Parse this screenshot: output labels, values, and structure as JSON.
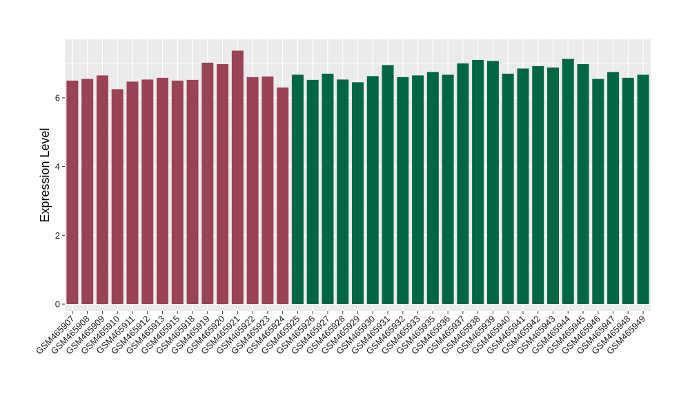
{
  "chart_data": {
    "type": "bar",
    "title": "",
    "xlabel": "",
    "ylabel": "Expression Level",
    "ylim": [
      -0.2,
      7.7
    ],
    "yticks": [
      0,
      2,
      4,
      6
    ],
    "grid": true,
    "legend": "none",
    "background_color": "#ebebeb",
    "grid_color": "#ffffff",
    "categories": [
      "GSM465907",
      "GSM465908",
      "GSM465909",
      "GSM465910",
      "GSM465911",
      "GSM465912",
      "GSM465913",
      "GSM465915",
      "GSM465918",
      "GSM465919",
      "GSM465920",
      "GSM465921",
      "GSM465922",
      "GSM465923",
      "GSM465924",
      "GSM465925",
      "GSM465926",
      "GSM465927",
      "GSM465928",
      "GSM465929",
      "GSM465930",
      "GSM465931",
      "GSM465932",
      "GSM465933",
      "GSM465935",
      "GSM465936",
      "GSM465937",
      "GSM465938",
      "GSM465939",
      "GSM465940",
      "GSM465941",
      "GSM465942",
      "GSM465943",
      "GSM465944",
      "GSM465945",
      "GSM465946",
      "GSM465947",
      "GSM465948",
      "GSM465949"
    ],
    "values": [
      6.5,
      6.55,
      6.65,
      6.25,
      6.47,
      6.53,
      6.58,
      6.5,
      6.52,
      7.02,
      6.98,
      7.37,
      6.6,
      6.62,
      6.3,
      6.67,
      6.52,
      6.7,
      6.53,
      6.45,
      6.63,
      6.95,
      6.6,
      6.65,
      6.75,
      6.67,
      7.0,
      7.1,
      7.07,
      6.7,
      6.85,
      6.92,
      6.88,
      7.13,
      6.98,
      6.55,
      6.75,
      6.58,
      6.67
    ],
    "groups": [
      "a",
      "a",
      "a",
      "a",
      "a",
      "a",
      "a",
      "a",
      "a",
      "a",
      "a",
      "a",
      "a",
      "a",
      "a",
      "b",
      "b",
      "b",
      "b",
      "b",
      "b",
      "b",
      "b",
      "b",
      "b",
      "b",
      "b",
      "b",
      "b",
      "b",
      "b",
      "b",
      "b",
      "b",
      "b",
      "b",
      "b",
      "b",
      "b"
    ],
    "group_colors": {
      "a": "#994455",
      "b": "#006644"
    }
  }
}
